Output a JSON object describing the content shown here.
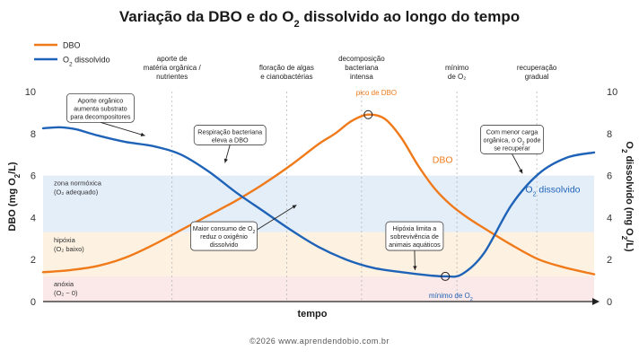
{
  "chart_data": {
    "type": "line",
    "title_html": "Variação da DBO e do O<tspan baseline-shift='sub' font-size='11'>2</tspan> dissolvido ao longo do tempo",
    "xlabel": "tempo",
    "ylabel_left": "DBO (mg O₂/L)",
    "ylabel_right": "O₂ dissolvido (mg O₂/L)",
    "ylim": [
      0,
      10
    ],
    "yticks": [
      0,
      2,
      4,
      6,
      8,
      10
    ],
    "x_range": [
      0,
      100
    ],
    "grid": "vertical dotted lines at phase boundaries",
    "legend": {
      "placement": "top-left",
      "items": [
        {
          "label": "DBO",
          "color": "#f07a1a"
        },
        {
          "label": "O₂ dissolvido",
          "color": "#1f63b8"
        }
      ]
    },
    "phases": [
      {
        "x": 23.4,
        "label": [
          "aporte de",
          "matéria orgânica /",
          "nutrientes"
        ]
      },
      {
        "x": 44.2,
        "label": [
          "floração de algas",
          "e cianobactérias"
        ]
      },
      {
        "x": 57.8,
        "label": [
          "decomposição",
          "bacteriana",
          "intensa"
        ]
      },
      {
        "x": 75.1,
        "label": [
          "mínimo",
          "de O₂"
        ]
      },
      {
        "x": 89.6,
        "label": [
          "recuperação",
          "gradual"
        ]
      }
    ],
    "zones": [
      {
        "name": "zona normóxica (O₂ adequado)",
        "lines": [
          "zona normóxica",
          "(O₂ adequado)"
        ],
        "from": 3.3,
        "to": 6.0,
        "color": "#e4eef9"
      },
      {
        "name": "hipóxia (O₂ baixo)",
        "lines": [
          "hipóxia",
          "(O₂ baixo)"
        ],
        "from": 1.2,
        "to": 3.3,
        "color": "#fdf1e1"
      },
      {
        "name": "anóxia (O₂ ~ 0)",
        "lines": [
          "anóxia",
          "(O₂ ~ 0)"
        ],
        "from": 0,
        "to": 1.2,
        "color": "#fbe8e8"
      }
    ],
    "series": [
      {
        "name": "DBO",
        "color": "#f07a1a",
        "x": [
          0,
          5,
          10,
          15,
          20,
          25,
          30,
          35,
          40,
          45,
          50,
          53,
          56,
          59,
          62,
          65,
          68,
          71,
          74,
          77,
          80,
          85,
          90,
          95,
          100
        ],
        "y": [
          1.4,
          1.5,
          1.7,
          2.1,
          2.7,
          3.4,
          4.1,
          4.8,
          5.6,
          6.5,
          7.5,
          8.0,
          8.6,
          8.9,
          8.7,
          7.8,
          6.5,
          5.4,
          4.6,
          4.0,
          3.5,
          2.7,
          2.0,
          1.6,
          1.3
        ]
      },
      {
        "name": "O₂ dissolvido",
        "color": "#1f63b8",
        "x": [
          0,
          3,
          6,
          10,
          15,
          20,
          25,
          30,
          35,
          40,
          45,
          50,
          55,
          60,
          65,
          70,
          73,
          76,
          80,
          85,
          90,
          95,
          100
        ],
        "y": [
          8.25,
          8.3,
          8.2,
          7.9,
          7.6,
          7.4,
          7.0,
          6.2,
          5.2,
          4.3,
          3.4,
          2.6,
          2.0,
          1.6,
          1.4,
          1.25,
          1.2,
          1.3,
          2.3,
          4.6,
          6.1,
          6.85,
          7.1
        ]
      }
    ],
    "series_labels": [
      {
        "text": "DBO",
        "series": 0,
        "x": 72.5,
        "y": 6.6
      },
      {
        "text_html": "O<tspan baseline-shift='sub' font-size='7'>2</tspan> dissolvido",
        "series": 1,
        "x": 92.5,
        "y": 5.2
      }
    ],
    "markers": [
      {
        "label": "pico de DBO",
        "x": 59,
        "y": 8.9,
        "series": 0,
        "label_x": 60.5,
        "label_y": 10.0
      },
      {
        "label_html": "mínimo de O<tspan baseline-shift='sub' font-size='5.5'>2</tspan>",
        "x": 73,
        "y": 1.2,
        "series": 1,
        "label_x": 74,
        "label_y": 0.35
      }
    ],
    "annotations": [
      {
        "lines": [
          "Aporte orgânico",
          "aumenta substrato",
          "para decompositores"
        ],
        "box_x": 4.3,
        "box_y": 9.9,
        "w": 75,
        "h": 32,
        "to_x": 18.5,
        "to_y": 7.9
      },
      {
        "lines": [
          "Respiração bacteriana",
          "eleva a DBO"
        ],
        "box_x": 27.4,
        "box_y": 8.4,
        "w": 80,
        "h": 22,
        "to_x": 33,
        "to_y": 6.6
      },
      {
        "lines_html": [
          "Maior consumo de O<tspan baseline-shift='sub' font-size='5'>2</tspan>",
          "reduz o oxigênio",
          "dissolvido"
        ],
        "box_x": 26.8,
        "box_y": 3.8,
        "w": 74,
        "h": 32,
        "to_x": 46,
        "to_y": 4.6
      },
      {
        "lines": [
          "Hipóxia limita a",
          "sobrevivência de",
          "animais aquáticos"
        ],
        "box_x": 62.2,
        "box_y": 3.8,
        "w": 64,
        "h": 32,
        "to_x": 67.5,
        "to_y": 1.5
      },
      {
        "lines_html": [
          "Com menor carga",
          "orgânica, o O<tspan baseline-shift='sub' font-size='5'>2</tspan> pode",
          "se recuperar"
        ],
        "box_x": 79.4,
        "box_y": 8.4,
        "w": 70,
        "h": 32,
        "to_x": 87,
        "to_y": 6.1
      }
    ]
  },
  "footer": "©2026 www.aprendendobio.com.br"
}
